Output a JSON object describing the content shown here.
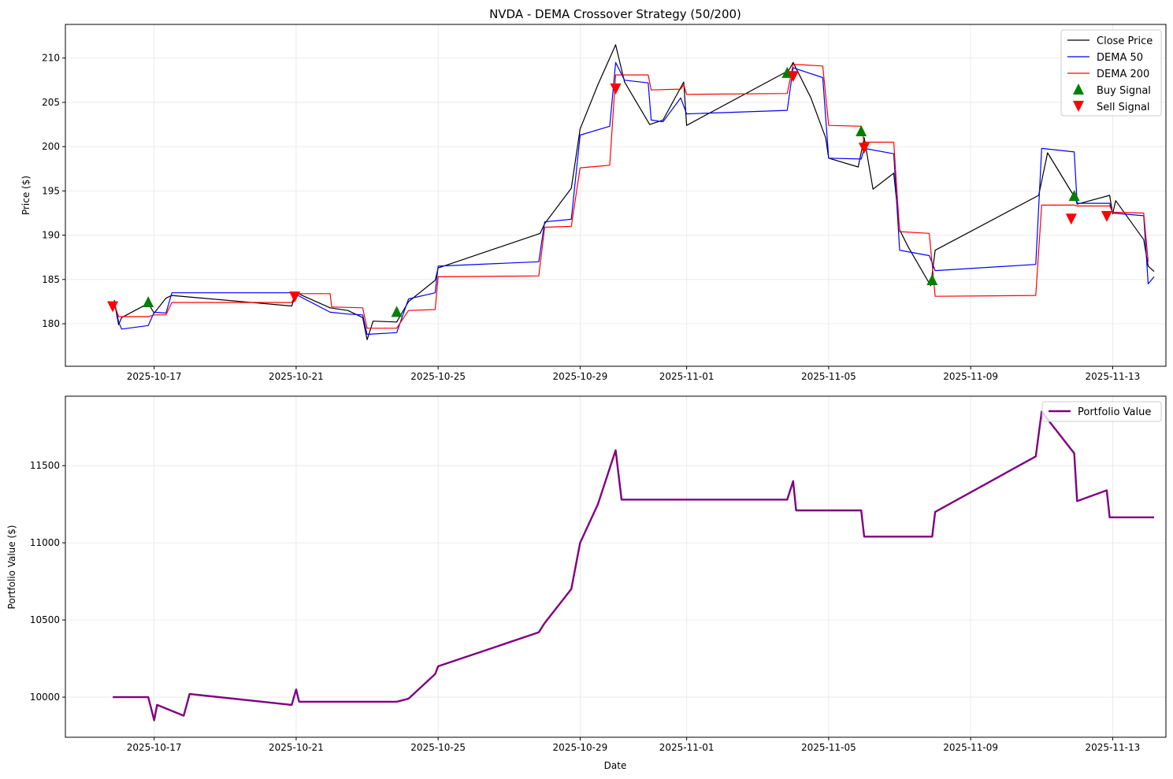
{
  "colors": {
    "close": "#000000",
    "dema50": "#0000ff",
    "dema200": "#ff0000",
    "buy": "#008000",
    "sell": "#ff0000",
    "portfolio": "#800080",
    "grid": "#e6e6e6"
  },
  "chart_data": [
    {
      "type": "line",
      "title": "NVDA - DEMA Crossover Strategy (50/200)",
      "xlabel": "",
      "ylabel": "Price ($)",
      "x_tick_labels": [
        "2025-10-17",
        "2025-10-21",
        "2025-10-25",
        "2025-10-29",
        "2025-11-01",
        "2025-11-05",
        "2025-11-09",
        "2025-11-13"
      ],
      "y_ticks": [
        180,
        185,
        190,
        195,
        200,
        205,
        210
      ],
      "ylim": [
        175.2,
        213.8
      ],
      "xlim": [
        "2025-10-14 12:00",
        "2025-11-14 12:00"
      ],
      "grid": true,
      "legend": "top-right",
      "series": [
        {
          "name": "Close Price",
          "points": [
            [
              "2025-10-15 21:00",
              182.5
            ],
            [
              "2025-10-16 00:00",
              179.9
            ],
            [
              "2025-10-16 02:00",
              180.7
            ],
            [
              "2025-10-16 20:00",
              182.3
            ],
            [
              "2025-10-17 00:00",
              181.2
            ],
            [
              "2025-10-17 08:00",
              182.9
            ],
            [
              "2025-10-17 12:00",
              183.2
            ],
            [
              "2025-10-20 21:00",
              182.0
            ],
            [
              "2025-10-21 00:00",
              183.5
            ],
            [
              "2025-10-21 23:00",
              181.8
            ],
            [
              "2025-10-22 11:00",
              181.5
            ],
            [
              "2025-10-22 21:00",
              180.7
            ],
            [
              "2025-10-23 00:00",
              178.2
            ],
            [
              "2025-10-23 04:00",
              180.3
            ],
            [
              "2025-10-23 20:00",
              180.2
            ],
            [
              "2025-10-24 04:00",
              182.5
            ],
            [
              "2025-10-24 22:00",
              184.9
            ],
            [
              "2025-10-25 00:00",
              186.3
            ],
            [
              "2025-10-27 21:00",
              190.2
            ],
            [
              "2025-10-28 00:00",
              191.3
            ],
            [
              "2025-10-28 18:00",
              195.3
            ],
            [
              "2025-10-29 00:00",
              202.0
            ],
            [
              "2025-10-29 12:00",
              207.0
            ],
            [
              "2025-10-30 00:00",
              211.5
            ],
            [
              "2025-10-30 06:00",
              207.3
            ],
            [
              "2025-10-30 23:00",
              202.5
            ],
            [
              "2025-10-31 08:00",
              203.0
            ],
            [
              "2025-10-31 22:00",
              207.3
            ],
            [
              "2025-11-01 00:00",
              202.4
            ],
            [
              "2025-11-03 21:00",
              208.6
            ],
            [
              "2025-11-04 00:00",
              209.5
            ],
            [
              "2025-11-04 12:00",
              205.5
            ],
            [
              "2025-11-04 22:00",
              201.0
            ],
            [
              "2025-11-05 00:00",
              198.7
            ],
            [
              "2025-11-05 20:00",
              197.7
            ],
            [
              "2025-11-06 00:00",
              201.0
            ],
            [
              "2025-11-06 06:00",
              195.2
            ],
            [
              "2025-11-06 20:00",
              197.0
            ],
            [
              "2025-11-07 00:00",
              190.6
            ],
            [
              "2025-11-07 06:00",
              188.6
            ],
            [
              "2025-11-07 21:00",
              184.3
            ],
            [
              "2025-11-08 00:00",
              188.3
            ],
            [
              "2025-11-10 22:00",
              194.5
            ],
            [
              "2025-11-11 04:00",
              199.3
            ],
            [
              "2025-11-11 23:00",
              194.1
            ],
            [
              "2025-11-12 00:00",
              193.5
            ],
            [
              "2025-11-12 22:00",
              194.5
            ],
            [
              "2025-11-13 00:00",
              192.4
            ],
            [
              "2025-11-13 02:00",
              193.9
            ],
            [
              "2025-11-13 21:00",
              189.5
            ],
            [
              "2025-11-14 00:00",
              186.5
            ],
            [
              "2025-11-14 04:00",
              185.9
            ]
          ]
        },
        {
          "name": "DEMA 50",
          "points": [
            [
              "2025-10-15 21:00",
              182.7
            ],
            [
              "2025-10-16 00:00",
              180.2
            ],
            [
              "2025-10-16 02:00",
              179.4
            ],
            [
              "2025-10-16 20:00",
              179.8
            ],
            [
              "2025-10-17 00:00",
              181.3
            ],
            [
              "2025-10-17 08:00",
              181.2
            ],
            [
              "2025-10-17 12:00",
              183.5
            ],
            [
              "2025-10-20 21:00",
              183.5
            ],
            [
              "2025-10-21 00:00",
              183.3
            ],
            [
              "2025-10-21 23:00",
              181.3
            ],
            [
              "2025-10-22 11:00",
              181.1
            ],
            [
              "2025-10-22 21:00",
              181.0
            ],
            [
              "2025-10-23 00:00",
              178.8
            ],
            [
              "2025-10-23 20:00",
              179.0
            ],
            [
              "2025-10-24 04:00",
              182.8
            ],
            [
              "2025-10-24 22:00",
              183.5
            ],
            [
              "2025-10-25 00:00",
              186.5
            ],
            [
              "2025-10-27 20:00",
              187.0
            ],
            [
              "2025-10-28 00:00",
              191.5
            ],
            [
              "2025-10-28 18:00",
              191.8
            ],
            [
              "2025-10-29 00:00",
              201.3
            ],
            [
              "2025-10-29 20:00",
              202.3
            ],
            [
              "2025-10-30 00:00",
              209.5
            ],
            [
              "2025-10-30 06:00",
              207.5
            ],
            [
              "2025-10-30 22:00",
              207.2
            ],
            [
              "2025-10-31 00:00",
              203.0
            ],
            [
              "2025-10-31 08:00",
              202.8
            ],
            [
              "2025-10-31 20:00",
              205.5
            ],
            [
              "2025-11-01 00:00",
              203.7
            ],
            [
              "2025-11-03 20:00",
              204.1
            ],
            [
              "2025-11-04 00:00",
              208.9
            ],
            [
              "2025-11-04 20:00",
              207.8
            ],
            [
              "2025-11-05 00:00",
              198.7
            ],
            [
              "2025-11-05 22:00",
              198.6
            ],
            [
              "2025-11-06 00:00",
              199.8
            ],
            [
              "2025-11-06 20:00",
              199.2
            ],
            [
              "2025-11-07 00:00",
              188.3
            ],
            [
              "2025-11-07 20:00",
              187.7
            ],
            [
              "2025-11-08 00:00",
              186.0
            ],
            [
              "2025-11-10 20:00",
              186.7
            ],
            [
              "2025-11-11 00:00",
              199.8
            ],
            [
              "2025-11-11 22:00",
              199.4
            ],
            [
              "2025-11-12 00:00",
              193.6
            ],
            [
              "2025-11-12 22:00",
              193.6
            ],
            [
              "2025-11-13 00:00",
              192.5
            ],
            [
              "2025-11-13 21:00",
              192.2
            ],
            [
              "2025-11-14 00:00",
              184.5
            ],
            [
              "2025-11-14 04:00",
              185.3
            ]
          ]
        },
        {
          "name": "DEMA 200",
          "points": [
            [
              "2025-10-15 21:00",
              182.2
            ],
            [
              "2025-10-16 00:00",
              180.8
            ],
            [
              "2025-10-16 20:00",
              180.8
            ],
            [
              "2025-10-17 00:00",
              181.0
            ],
            [
              "2025-10-17 08:00",
              181.0
            ],
            [
              "2025-10-17 12:00",
              182.4
            ],
            [
              "2025-10-20 21:00",
              182.4
            ],
            [
              "2025-10-21 00:00",
              183.4
            ],
            [
              "2025-10-21 23:00",
              183.4
            ],
            [
              "2025-10-22 00:00",
              181.9
            ],
            [
              "2025-10-22 21:00",
              181.8
            ],
            [
              "2025-10-23 00:00",
              179.5
            ],
            [
              "2025-10-23 20:00",
              179.5
            ],
            [
              "2025-10-24 04:00",
              181.5
            ],
            [
              "2025-10-24 22:00",
              181.6
            ],
            [
              "2025-10-25 00:00",
              185.3
            ],
            [
              "2025-10-27 20:00",
              185.4
            ],
            [
              "2025-10-28 00:00",
              190.9
            ],
            [
              "2025-10-28 18:00",
              191.0
            ],
            [
              "2025-10-29 00:00",
              197.6
            ],
            [
              "2025-10-29 20:00",
              197.9
            ],
            [
              "2025-10-30 00:00",
              208.1
            ],
            [
              "2025-10-30 22:00",
              208.1
            ],
            [
              "2025-10-31 00:00",
              206.4
            ],
            [
              "2025-10-31 20:00",
              206.5
            ],
            [
              "2025-10-31 22:00",
              207.0
            ],
            [
              "2025-11-01 00:00",
              205.9
            ],
            [
              "2025-11-03 20:00",
              206.0
            ],
            [
              "2025-11-04 00:00",
              209.3
            ],
            [
              "2025-11-04 20:00",
              209.1
            ],
            [
              "2025-11-05 00:00",
              202.4
            ],
            [
              "2025-11-05 22:00",
              202.3
            ],
            [
              "2025-11-06 00:00",
              200.5
            ],
            [
              "2025-11-06 20:00",
              200.5
            ],
            [
              "2025-11-07 00:00",
              190.4
            ],
            [
              "2025-11-07 20:00",
              190.2
            ],
            [
              "2025-11-08 00:00",
              183.1
            ],
            [
              "2025-11-10 20:00",
              183.2
            ],
            [
              "2025-11-11 00:00",
              193.4
            ],
            [
              "2025-11-11 22:00",
              193.4
            ],
            [
              "2025-11-12 00:00",
              193.3
            ],
            [
              "2025-11-12 22:00",
              193.3
            ],
            [
              "2025-11-13 00:00",
              192.6
            ],
            [
              "2025-11-13 21:00",
              192.5
            ],
            [
              "2025-11-14 00:00",
              187.0
            ]
          ]
        },
        {
          "name": "Buy Signal",
          "points": [
            [
              "2025-10-16 20:00",
              182.4
            ],
            [
              "2025-10-23 20:00",
              181.3
            ],
            [
              "2025-11-03 20:00",
              208.3
            ],
            [
              "2025-11-05 22:00",
              201.7
            ],
            [
              "2025-11-07 22:00",
              184.9
            ],
            [
              "2025-11-11 22:00",
              194.4
            ]
          ]
        },
        {
          "name": "Sell Signal",
          "points": [
            [
              "2025-10-15 20:00",
              182.0
            ],
            [
              "2025-10-20 23:00",
              183.1
            ],
            [
              "2025-10-30 00:00",
              206.6
            ],
            [
              "2025-11-04 00:00",
              208.0
            ],
            [
              "2025-11-06 00:00",
              199.9
            ],
            [
              "2025-11-11 20:00",
              191.9
            ],
            [
              "2025-11-12 20:00",
              192.2
            ]
          ]
        }
      ]
    },
    {
      "type": "line",
      "title": "",
      "xlabel": "Date",
      "ylabel": "Portfolio Value ($)",
      "x_tick_labels": [
        "2025-10-17",
        "2025-10-21",
        "2025-10-25",
        "2025-10-29",
        "2025-11-01",
        "2025-11-05",
        "2025-11-09",
        "2025-11-13"
      ],
      "y_ticks": [
        10000,
        10500,
        11000,
        11500
      ],
      "ylim": [
        9740,
        11950
      ],
      "xlim": [
        "2025-10-14 12:00",
        "2025-11-14 12:00"
      ],
      "grid": true,
      "legend": "top-right",
      "series": [
        {
          "name": "Portfolio Value",
          "points": [
            [
              "2025-10-15 20:00",
              10000
            ],
            [
              "2025-10-16 20:00",
              10000
            ],
            [
              "2025-10-17 00:00",
              9850
            ],
            [
              "2025-10-17 02:00",
              9950
            ],
            [
              "2025-10-17 20:00",
              9880
            ],
            [
              "2025-10-18 00:00",
              10020
            ],
            [
              "2025-10-20 21:00",
              9950
            ],
            [
              "2025-10-21 00:00",
              10050
            ],
            [
              "2025-10-21 02:00",
              9970
            ],
            [
              "2025-10-23 20:00",
              9970
            ],
            [
              "2025-10-24 04:00",
              9990
            ],
            [
              "2025-10-24 22:00",
              10150
            ],
            [
              "2025-10-25 00:00",
              10200
            ],
            [
              "2025-10-27 20:00",
              10420
            ],
            [
              "2025-10-28 00:00",
              10480
            ],
            [
              "2025-10-28 18:00",
              10700
            ],
            [
              "2025-10-29 00:00",
              11000
            ],
            [
              "2025-10-29 12:00",
              11250
            ],
            [
              "2025-10-30 00:00",
              11600
            ],
            [
              "2025-10-30 04:00",
              11280
            ],
            [
              "2025-11-03 20:00",
              11280
            ],
            [
              "2025-11-04 00:00",
              11400
            ],
            [
              "2025-11-04 02:00",
              11210
            ],
            [
              "2025-11-05 22:00",
              11210
            ],
            [
              "2025-11-06 00:00",
              11040
            ],
            [
              "2025-11-07 22:00",
              11040
            ],
            [
              "2025-11-08 00:00",
              11200
            ],
            [
              "2025-11-10 20:00",
              11560
            ],
            [
              "2025-11-11 00:00",
              11850
            ],
            [
              "2025-11-11 22:00",
              11580
            ],
            [
              "2025-11-12 00:00",
              11270
            ],
            [
              "2025-11-12 20:00",
              11340
            ],
            [
              "2025-11-12 22:00",
              11165
            ],
            [
              "2025-11-14 04:00",
              11165
            ]
          ]
        }
      ]
    }
  ]
}
